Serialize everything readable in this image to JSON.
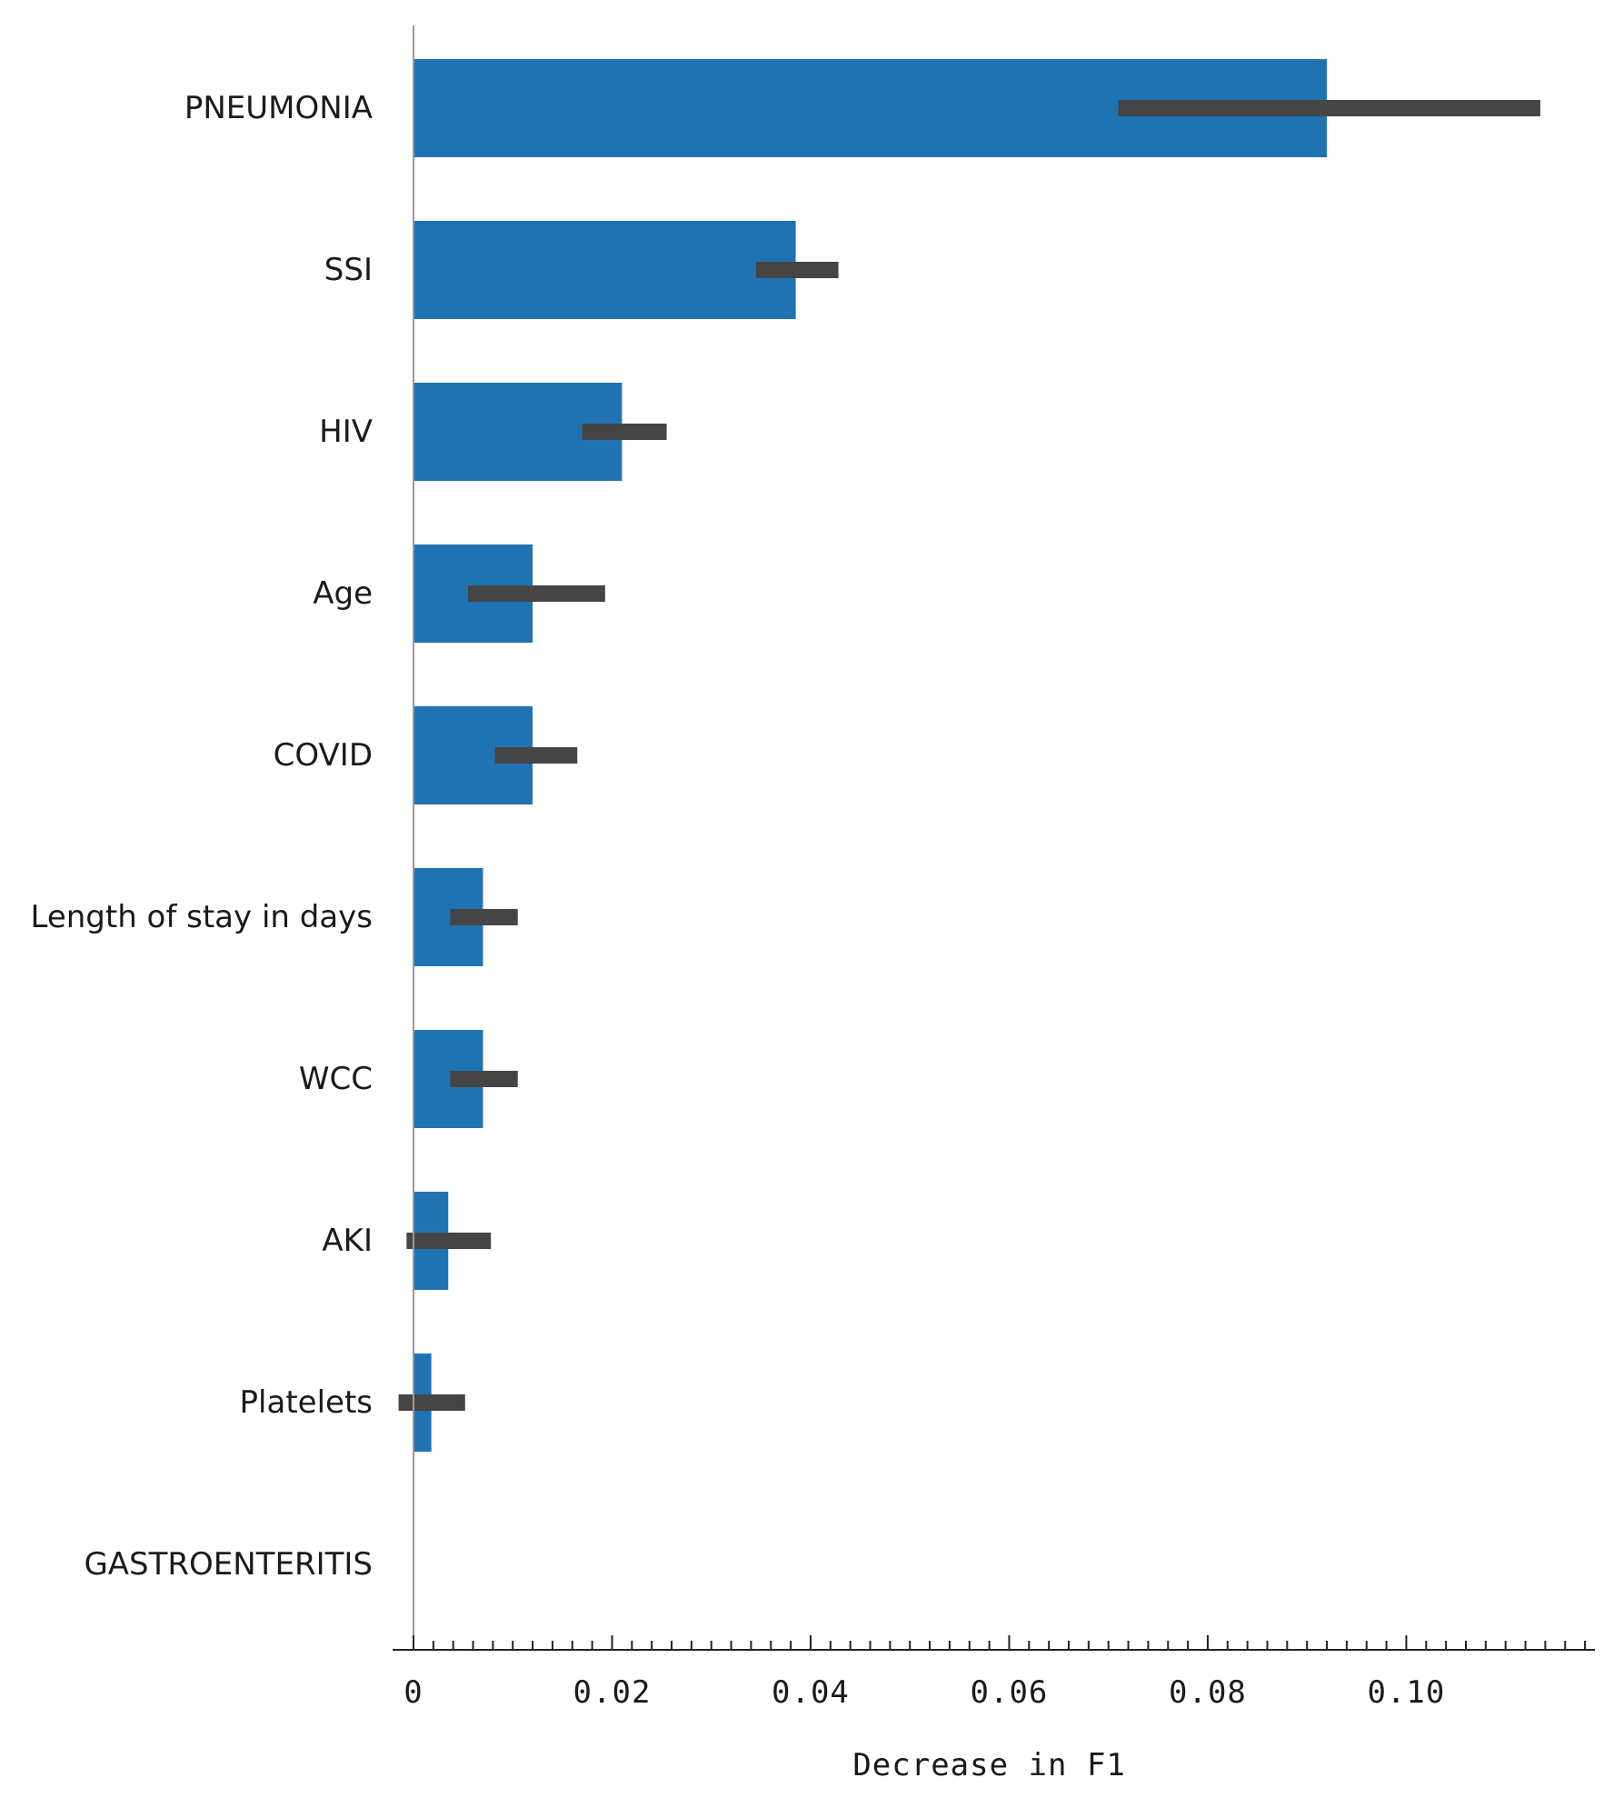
{
  "chart_data": {
    "type": "bar",
    "orientation": "horizontal",
    "categories": [
      "PNEUMONIA",
      "SSI",
      "HIV",
      "Age",
      "COVID",
      "Length of stay in days",
      "WCC",
      "AKI",
      "Platelets",
      "GASTROENTERITIS"
    ],
    "values": [
      0.092,
      0.0385,
      0.021,
      0.012,
      0.012,
      0.007,
      0.007,
      0.0035,
      0.0018,
      0.0
    ],
    "error_low": [
      0.071,
      0.0345,
      0.017,
      0.0055,
      0.0082,
      0.0037,
      0.0037,
      -0.0007,
      -0.0015,
      null
    ],
    "error_high": [
      0.1135,
      0.0428,
      0.0255,
      0.0193,
      0.0165,
      0.0105,
      0.0105,
      0.0078,
      0.0052,
      null
    ],
    "xlabel": "Decrease in F1",
    "xlim": [
      0,
      0.119
    ],
    "xticks": [
      0,
      0.02,
      0.04,
      0.06,
      0.08,
      0.1
    ],
    "xtick_labels": [
      "0",
      "0.02",
      "0.04",
      "0.06",
      "0.08",
      "0.10"
    ],
    "minor_tick_step": 0.002,
    "grid": false,
    "legend": "none",
    "colors": {
      "bar": "#2073b3",
      "error": "#454545",
      "axis": "#999999"
    }
  }
}
